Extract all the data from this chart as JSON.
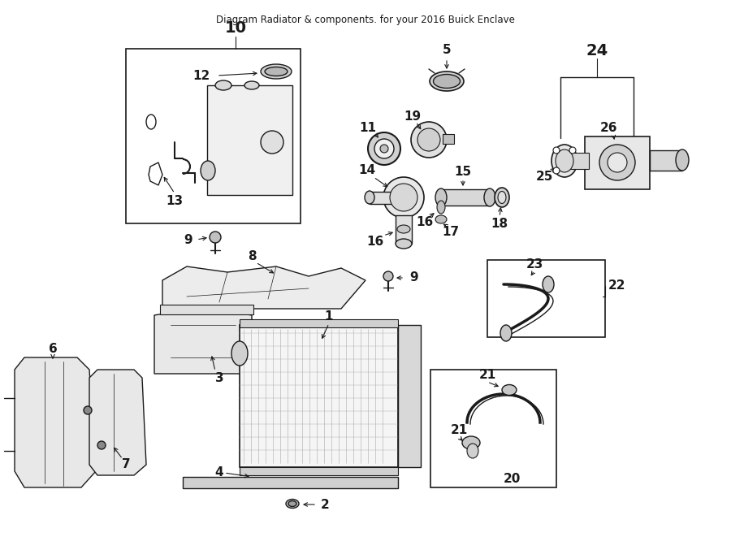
{
  "title": "Diagram Radiator & components. for your 2016 Buick Enclave",
  "bg_color": "#ffffff",
  "lc": "#1a1a1a",
  "fig_width": 9.0,
  "fig_height": 6.61,
  "dpi": 100,
  "xmax": 900,
  "ymax": 661
}
